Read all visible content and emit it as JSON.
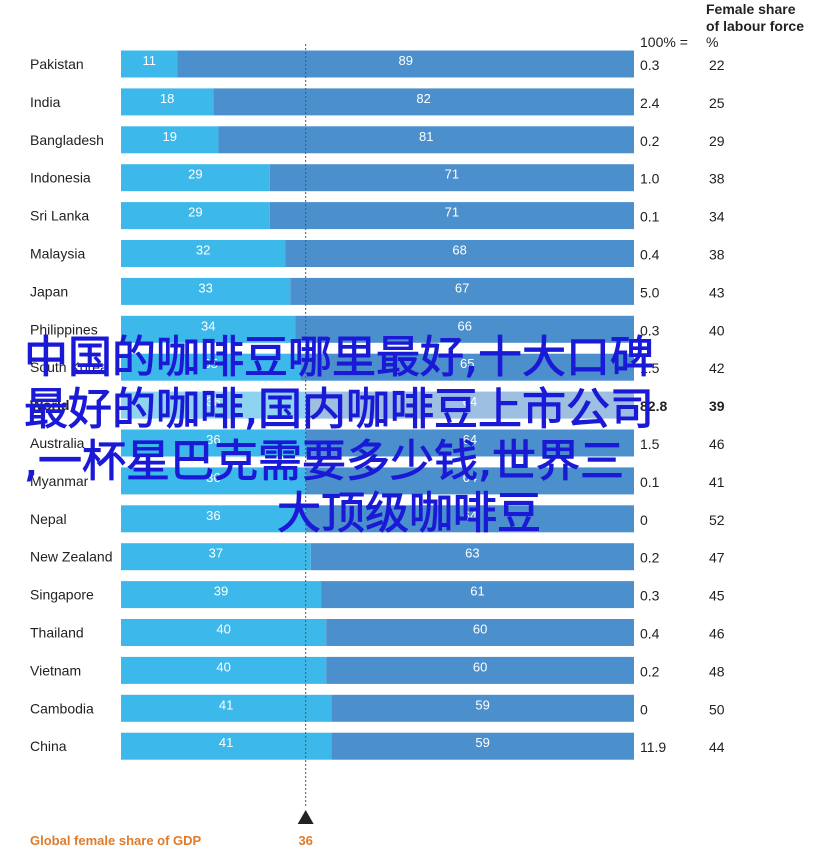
{
  "chart_data": {
    "type": "bar",
    "stacked": true,
    "orientation": "horizontal",
    "scale_max": 100,
    "scale_max_label": "100% =",
    "col2_header": [
      "Female share",
      "of labour force"
    ],
    "col2_unit": "%",
    "rows": [
      {
        "country": "Pakistan",
        "share": 11,
        "rest": 89,
        "total": "0.3",
        "female": "22"
      },
      {
        "country": "India",
        "share": 18,
        "rest": 82,
        "total": "2.4",
        "female": "25"
      },
      {
        "country": "Bangladesh",
        "share": 19,
        "rest": 81,
        "total": "0.2",
        "female": "29"
      },
      {
        "country": "Indonesia",
        "share": 29,
        "rest": 71,
        "total": "1.0",
        "female": "38"
      },
      {
        "country": "Sri Lanka",
        "share": 29,
        "rest": 71,
        "total": "0.1",
        "female": "34"
      },
      {
        "country": "Malaysia",
        "share": 32,
        "rest": 68,
        "total": "0.4",
        "female": "38"
      },
      {
        "country": "Japan",
        "share": 33,
        "rest": 67,
        "total": "5.0",
        "female": "43"
      },
      {
        "country": "Philippines",
        "share": 34,
        "rest": 66,
        "total": "0.3",
        "female": "40"
      },
      {
        "country": "South Korea",
        "share": 35,
        "rest": 65,
        "total": "1.5",
        "female": "42"
      },
      {
        "country": "Australia",
        "share": 36,
        "rest": 64,
        "total": "1.5",
        "female": "46"
      },
      {
        "country": "Myanmar",
        "share": 36,
        "rest": 64,
        "total": "0.1",
        "female": "41"
      },
      {
        "country": "Nepal",
        "share": 36,
        "rest": 64,
        "total": "0",
        "female": "52"
      },
      {
        "country": "New Zealand",
        "share": 37,
        "rest": 63,
        "total": "0.2",
        "female": "47"
      },
      {
        "country": "Singapore",
        "share": 39,
        "rest": 61,
        "total": "0.3",
        "female": "45"
      },
      {
        "country": "Thailand",
        "share": 40,
        "rest": 60,
        "total": "0.4",
        "female": "46"
      },
      {
        "country": "Vietnam",
        "share": 40,
        "rest": 60,
        "total": "0.2",
        "female": "48"
      },
      {
        "country": "Cambodia",
        "share": 41,
        "rest": 59,
        "total": "0",
        "female": "50"
      },
      {
        "country": "China",
        "share": 41,
        "rest": 59,
        "total": "11.9",
        "female": "44"
      }
    ],
    "world_row": {
      "country": "World",
      "share": 36,
      "rest": 64,
      "total": "82.8",
      "female": "39"
    },
    "world_row_after": "South Korea",
    "marker": {
      "value": 36,
      "label": "36"
    },
    "footer_label": "Global female share of GDP"
  },
  "colors": {
    "share_bar": "#3db8ea",
    "rest_bar": "#4c8fcd",
    "world_share_bar": "#8ed3f0",
    "world_rest_bar": "#9cbfe2",
    "orange": "#e07b2a",
    "marker_line": "#555555",
    "overlay_text": "#1a1ad6"
  },
  "overlay": {
    "lines": [
      "中国的咖啡豆哪里最好,十大口碑",
      "最好的咖啡,国内咖啡豆上市公司",
      ",一杯星巴克需要多少钱,世界三",
      "大顶级咖啡豆"
    ]
  }
}
